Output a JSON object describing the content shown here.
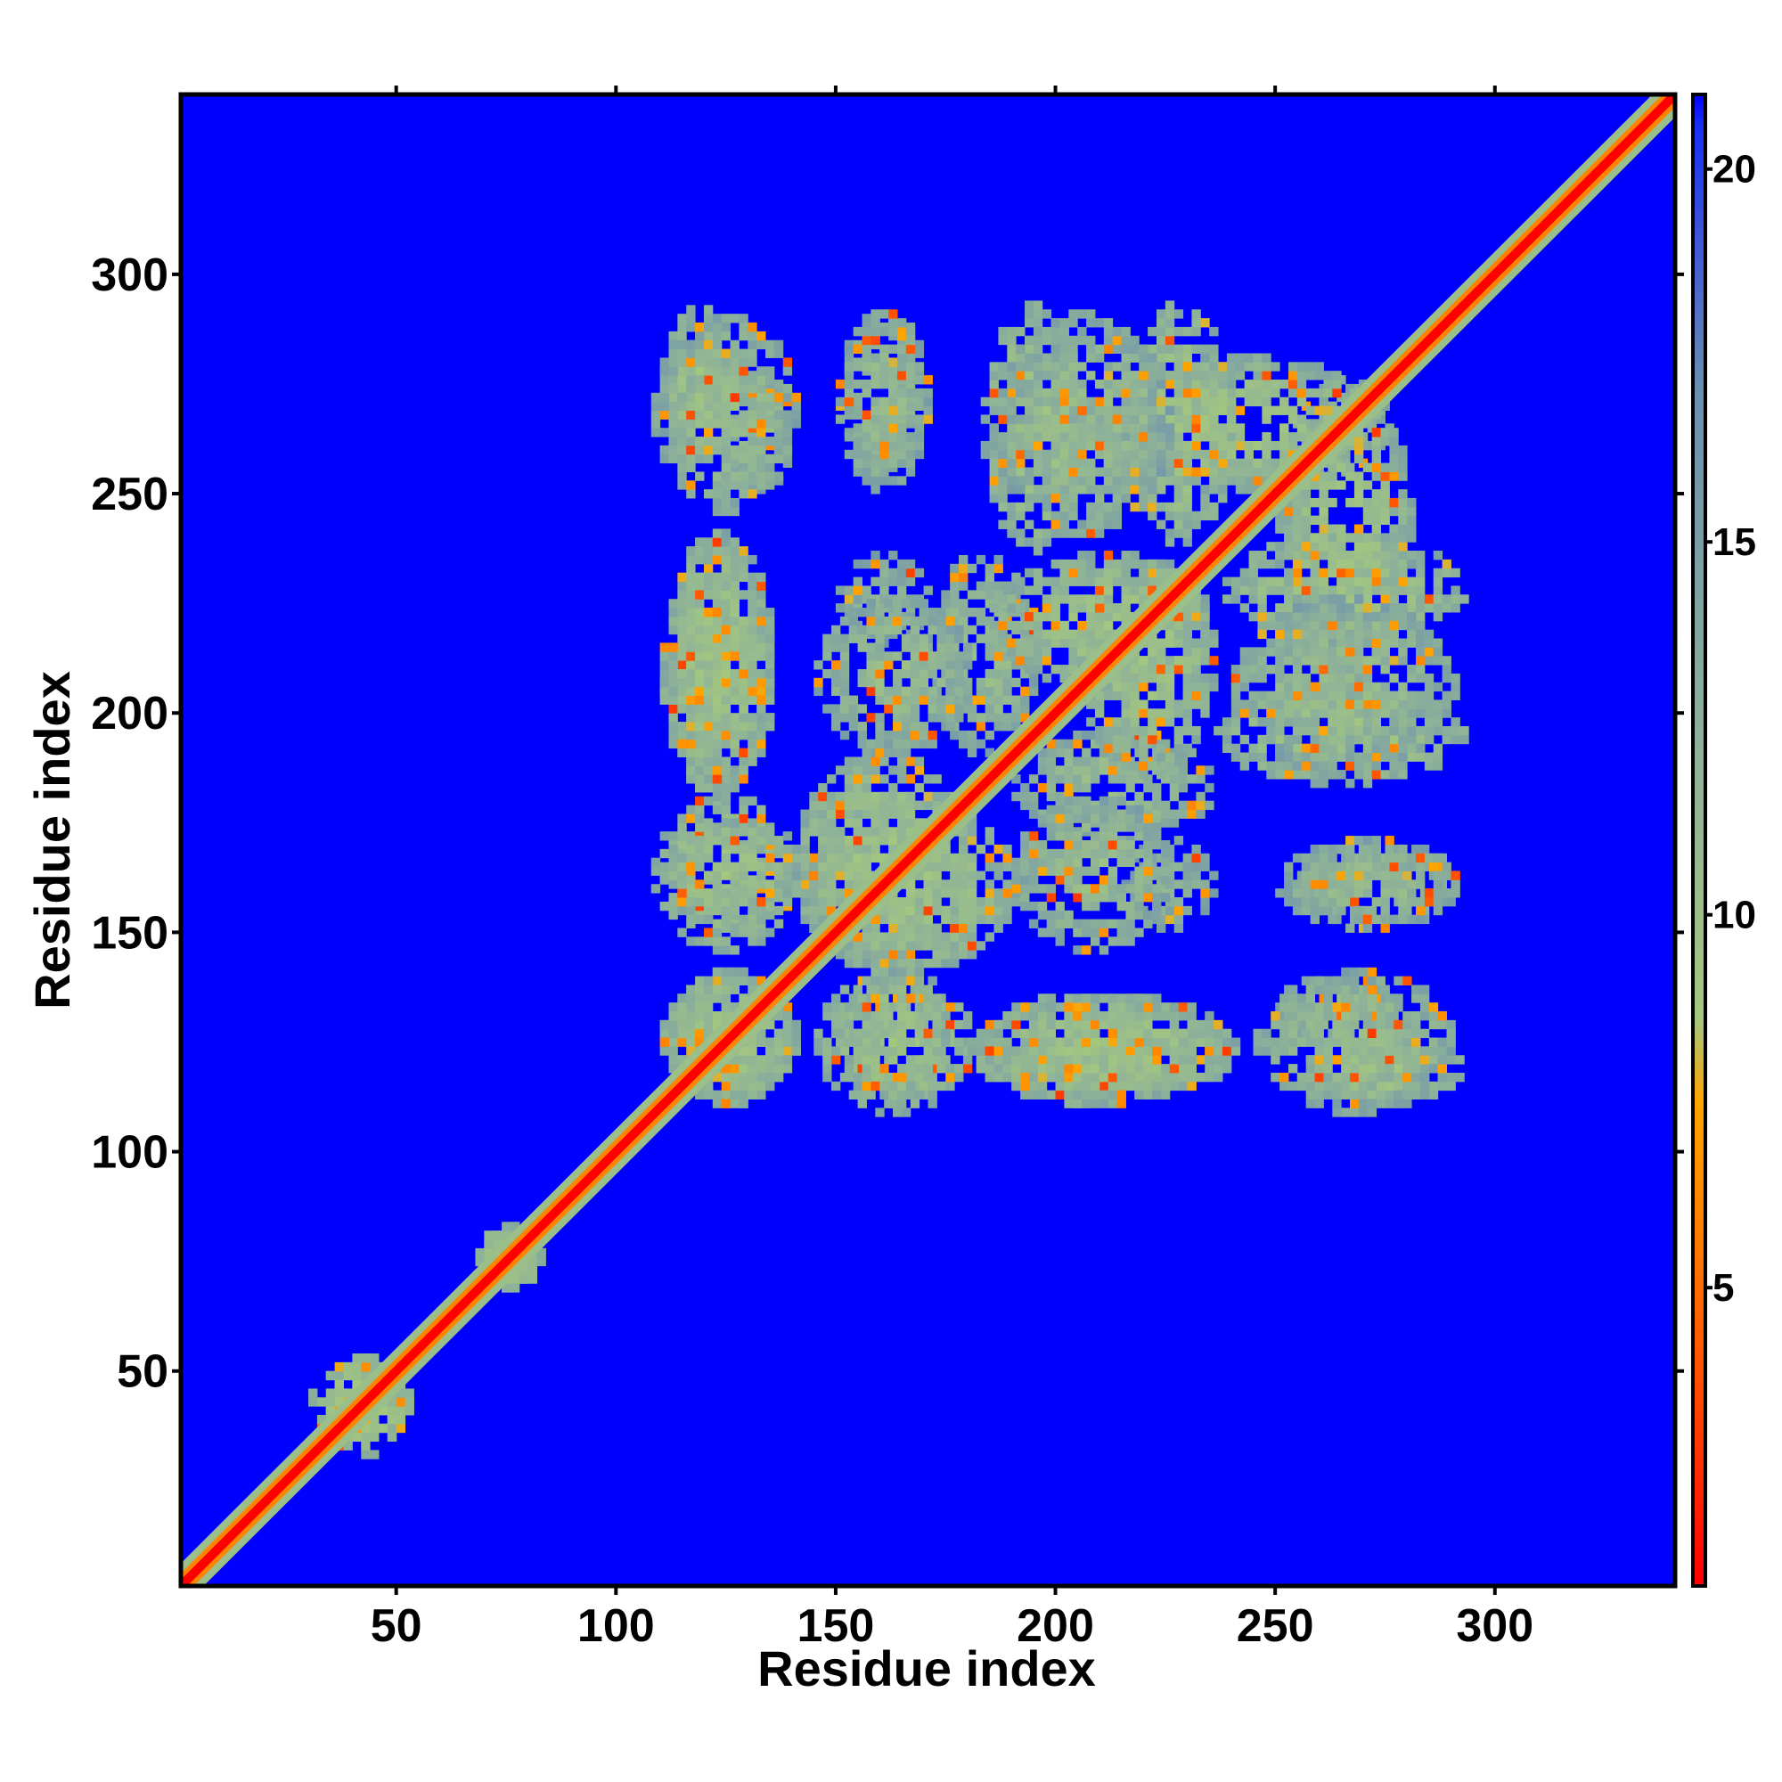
{
  "chart_data": {
    "type": "heatmap",
    "title": "",
    "xlabel": "Residue index",
    "ylabel": "Residue index",
    "xlim": [
      1,
      341
    ],
    "ylim": [
      1,
      341
    ],
    "x_ticks": [
      50,
      100,
      150,
      200,
      250,
      300
    ],
    "y_ticks": [
      50,
      100,
      150,
      200,
      250,
      300
    ],
    "colorbar": {
      "ticks": [
        5,
        10,
        15,
        20
      ],
      "range": [
        1,
        21
      ],
      "colors": [
        {
          "value": 1,
          "color": "#ff0000"
        },
        {
          "value": 4,
          "color": "#ff5500"
        },
        {
          "value": 7.5,
          "color": "#ffa500"
        },
        {
          "value": 8.6,
          "color": "#a4c77f"
        },
        {
          "value": 12,
          "color": "#8fb397"
        },
        {
          "value": 17,
          "color": "#6b8fb0"
        },
        {
          "value": 20.6,
          "color": "#1a2ef5"
        },
        {
          "value": 21,
          "color": "#0000ff"
        }
      ]
    },
    "background_value": 21,
    "diagonal_value": 1,
    "contact_regions": [
      {
        "x": [
          110,
          125
        ],
        "y": [
          255,
          292
        ],
        "value": 10
      },
      {
        "x": [
          122,
          140
        ],
        "y": [
          250,
          276
        ],
        "value": 11
      },
      {
        "x": [
          150,
          170
        ],
        "y": [
          255,
          290
        ],
        "value": 11
      },
      {
        "x": [
          183,
          205
        ],
        "y": [
          236,
          292
        ],
        "value": 10
      },
      {
        "x": [
          215,
          240
        ],
        "y": [
          238,
          292
        ],
        "value": 10
      },
      {
        "x": [
          250,
          280
        ],
        "y": [
          205,
          275
        ],
        "value": 10
      },
      {
        "x": [
          110,
          135
        ],
        "y": [
          180,
          235
        ],
        "value": 10
      },
      {
        "x": [
          150,
          170
        ],
        "y": [
          215,
          235
        ],
        "value": 12
      },
      {
        "x": [
          170,
          195
        ],
        "y": [
          190,
          235
        ],
        "value": 11
      },
      {
        "x": [
          205,
          235
        ],
        "y": [
          185,
          235
        ],
        "value": 10
      },
      {
        "x": [
          240,
          290
        ],
        "y": [
          185,
          225
        ],
        "value": 11
      },
      {
        "x": [
          108,
          140
        ],
        "y": [
          145,
          180
        ],
        "value": 10
      },
      {
        "x": [
          140,
          190
        ],
        "y": [
          140,
          180
        ],
        "value": 10
      },
      {
        "x": [
          190,
          225
        ],
        "y": [
          145,
          180
        ],
        "value": 11
      },
      {
        "x": [
          250,
          290
        ],
        "y": [
          150,
          170
        ],
        "value": 11
      },
      {
        "x": [
          110,
          140
        ],
        "y": [
          110,
          140
        ],
        "value": 10
      },
      {
        "x": [
          150,
          175
        ],
        "y": [
          110,
          140
        ],
        "value": 10
      },
      {
        "x": [
          180,
          240
        ],
        "y": [
          110,
          135
        ],
        "value": 10
      },
      {
        "x": [
          245,
          290
        ],
        "y": [
          108,
          140
        ],
        "value": 11
      },
      {
        "x": [
          32,
          52
        ],
        "y": [
          30,
          52
        ],
        "value": 9
      },
      {
        "x": [
          68,
          82
        ],
        "y": [
          68,
          82
        ],
        "value": 9
      }
    ]
  }
}
